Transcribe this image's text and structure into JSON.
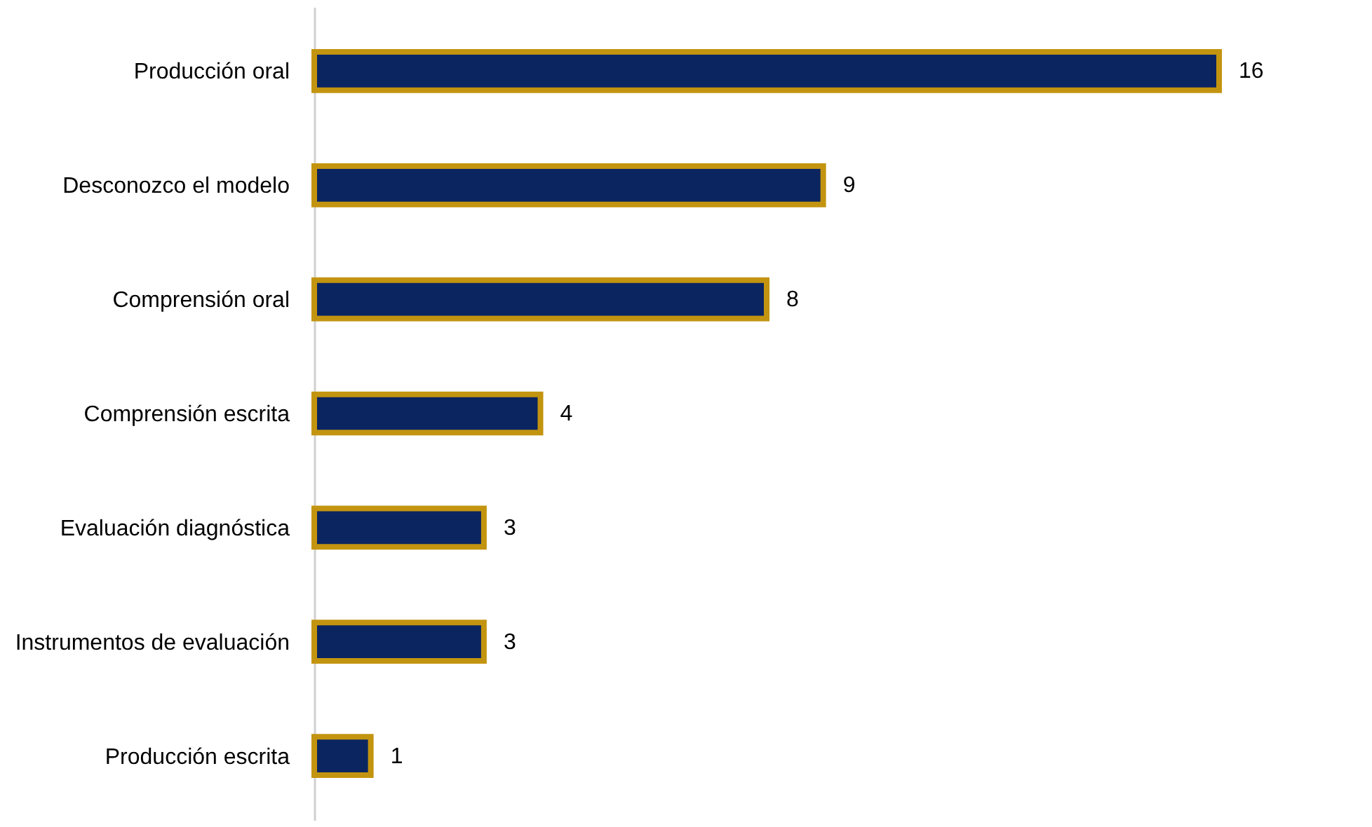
{
  "chart_data": {
    "type": "bar",
    "orientation": "horizontal",
    "categories": [
      "Producción oral",
      "Desconozco el modelo",
      "Comprensión oral",
      "Comprensión escrita",
      "Evaluación diagnóstica",
      "Instrumentos de evaluación",
      "Producción escrita"
    ],
    "values": [
      16,
      9,
      8,
      4,
      3,
      3,
      1
    ],
    "color": "#0b2560",
    "xlim": [
      0,
      16
    ],
    "tick_labels": "y",
    "data_labels": true
  }
}
